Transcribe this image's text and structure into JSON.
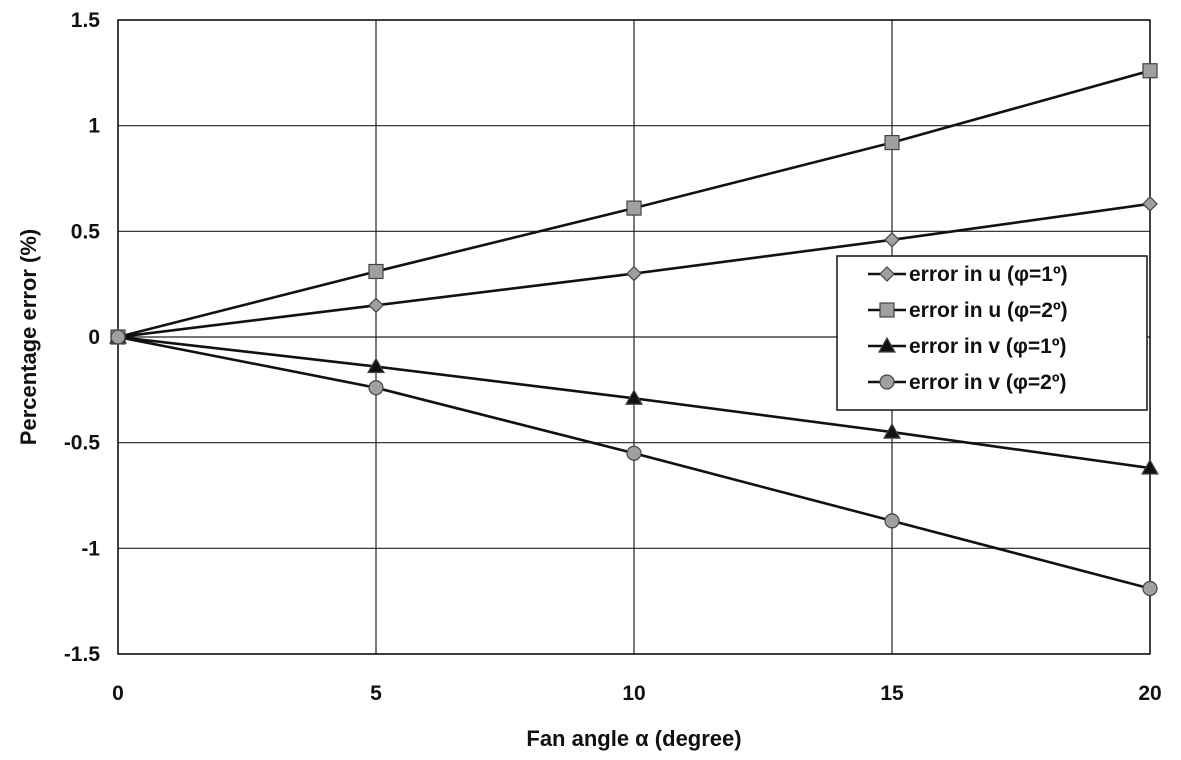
{
  "chart_data": {
    "type": "line",
    "title": "",
    "xlabel": "Fan angle α (degree)",
    "ylabel": "Percentage error (%)",
    "x": [
      0,
      5,
      10,
      15,
      20
    ],
    "xlim": [
      0,
      20
    ],
    "ylim": [
      -1.5,
      1.5
    ],
    "xticks": [
      "0",
      "5",
      "10",
      "15",
      "20"
    ],
    "yticks": [
      "1.5",
      "1",
      "0.5",
      "0",
      "-0.5",
      "-1",
      "-1.5"
    ],
    "grid": true,
    "legend_position": "right",
    "series": [
      {
        "name": "error in u (φ=1º)",
        "marker": "diamond",
        "marker_color": "#a0a0a0",
        "values": [
          0,
          0.15,
          0.3,
          0.46,
          0.63
        ]
      },
      {
        "name": "error in u (φ=2º)",
        "marker": "square",
        "marker_color": "#a0a0a0",
        "values": [
          0,
          0.31,
          0.61,
          0.92,
          1.26
        ]
      },
      {
        "name": "error in v (φ=1º)",
        "marker": "triangle",
        "marker_color": "#111111",
        "values": [
          0,
          -0.14,
          -0.29,
          -0.45,
          -0.62
        ]
      },
      {
        "name": "error in v (φ=2º)",
        "marker": "circle",
        "marker_color": "#a0a0a0",
        "values": [
          0,
          -0.24,
          -0.55,
          -0.87,
          -1.19
        ]
      }
    ]
  }
}
